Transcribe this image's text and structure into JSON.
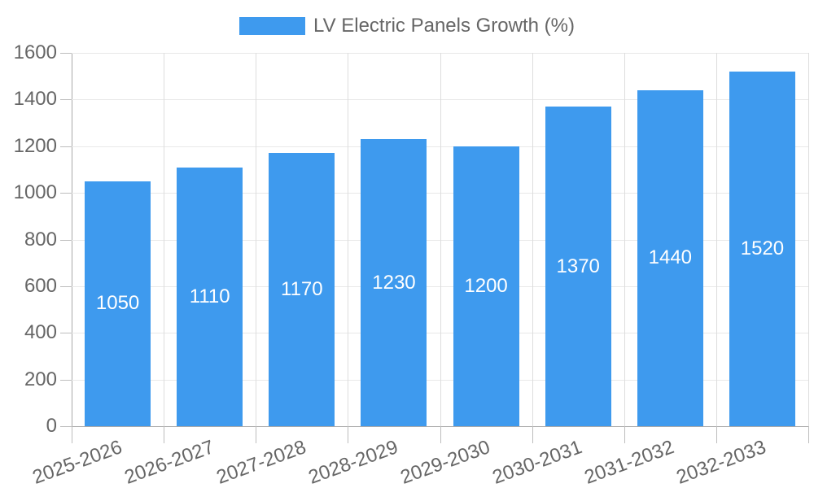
{
  "chart_data": {
    "type": "bar",
    "title": "",
    "legend": {
      "label": "LV Electric Panels Growth (%)",
      "position": "top"
    },
    "categories": [
      "2025-2026",
      "2026-2027",
      "2027-2028",
      "2028-2029",
      "2029-2030",
      "2030-2031",
      "2031-2032",
      "2032-2033"
    ],
    "series": [
      {
        "name": "LV Electric Panels Growth (%)",
        "values": [
          1050,
          1110,
          1170,
          1230,
          1200,
          1370,
          1440,
          1520
        ]
      }
    ],
    "value_labels_shown": true,
    "xlabel": "",
    "ylabel": "",
    "ylim": [
      0,
      1600
    ],
    "ytick_step": 200,
    "grid": true,
    "x_label_rotation_deg": -20,
    "colors": {
      "bar": "#3e9aee",
      "value_label": "#ffffff",
      "axis": "#aaaaaa",
      "tick": "#bdbdbd",
      "grid_horizontal": "#e8e8e8",
      "grid_vertical": "#dddddd",
      "text": "#666666",
      "background": "#ffffff"
    }
  }
}
